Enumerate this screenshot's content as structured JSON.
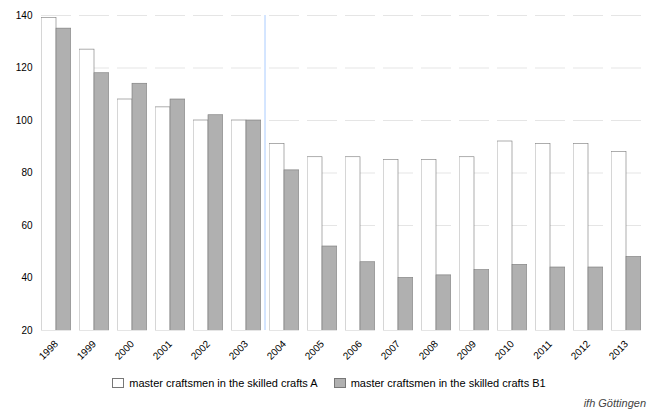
{
  "chart_data": {
    "type": "bar",
    "categories": [
      "1998",
      "1999",
      "2000",
      "2001",
      "2002",
      "2003",
      "2004",
      "2005",
      "2006",
      "2007",
      "2008",
      "2009",
      "2010",
      "2011",
      "2012",
      "2013"
    ],
    "series": [
      {
        "name": "master craftsmen in the skilled crafts A",
        "color": "#ffffff",
        "values": [
          139,
          127,
          108,
          105,
          100,
          100,
          91,
          86,
          86,
          85,
          85,
          86,
          92,
          91,
          91,
          88
        ]
      },
      {
        "name": "master craftsmen in the skilled crafts B1",
        "color": "#b0b0b0",
        "values": [
          135,
          118,
          114,
          108,
          102,
          100,
          81,
          52,
          46,
          40,
          41,
          43,
          45,
          44,
          44,
          48
        ]
      }
    ],
    "ylim": [
      20,
      140
    ],
    "yticks": [
      20,
      40,
      60,
      80,
      100,
      120,
      140
    ],
    "grid": true,
    "legend": "bottom",
    "caption": "ifh Göttingen",
    "vline": {
      "after": "2003",
      "color": "#aaccff"
    }
  }
}
